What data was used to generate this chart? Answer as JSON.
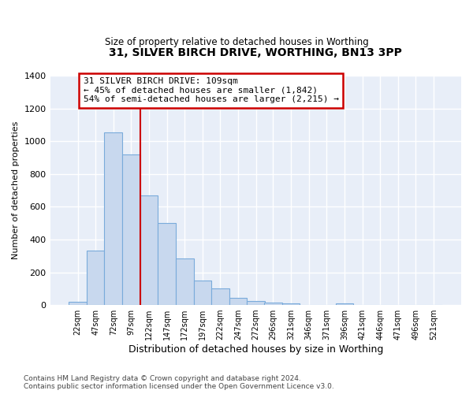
{
  "title1": "31, SILVER BIRCH DRIVE, WORTHING, BN13 3PP",
  "title2": "Size of property relative to detached houses in Worthing",
  "xlabel": "Distribution of detached houses by size in Worthing",
  "ylabel": "Number of detached properties",
  "categories": [
    "22sqm",
    "47sqm",
    "72sqm",
    "97sqm",
    "122sqm",
    "147sqm",
    "172sqm",
    "197sqm",
    "222sqm",
    "247sqm",
    "272sqm",
    "296sqm",
    "321sqm",
    "346sqm",
    "371sqm",
    "396sqm",
    "421sqm",
    "446sqm",
    "471sqm",
    "496sqm",
    "521sqm"
  ],
  "values": [
    20,
    330,
    1055,
    920,
    670,
    500,
    285,
    150,
    100,
    45,
    25,
    15,
    10,
    0,
    0,
    10,
    0,
    0,
    0,
    0,
    0
  ],
  "bar_color": "#c8d8ee",
  "bar_edge_color": "#7aabdb",
  "property_line_x": 109.5,
  "annotation_text": "31 SILVER BIRCH DRIVE: 109sqm\n← 45% of detached houses are smaller (1,842)\n54% of semi-detached houses are larger (2,215) →",
  "annotation_box_color": "#ffffff",
  "annotation_box_edge": "#cc0000",
  "vline_color": "#cc0000",
  "footnote": "Contains HM Land Registry data © Crown copyright and database right 2024.\nContains public sector information licensed under the Open Government Licence v3.0.",
  "ylim": [
    0,
    1400
  ],
  "yticks": [
    0,
    200,
    400,
    600,
    800,
    1000,
    1200,
    1400
  ],
  "bin_centers": [
    22,
    47,
    72,
    97,
    122,
    147,
    172,
    197,
    222,
    247,
    272,
    296,
    321,
    346,
    371,
    396,
    421,
    446,
    471,
    496,
    521
  ],
  "bin_width": 25
}
